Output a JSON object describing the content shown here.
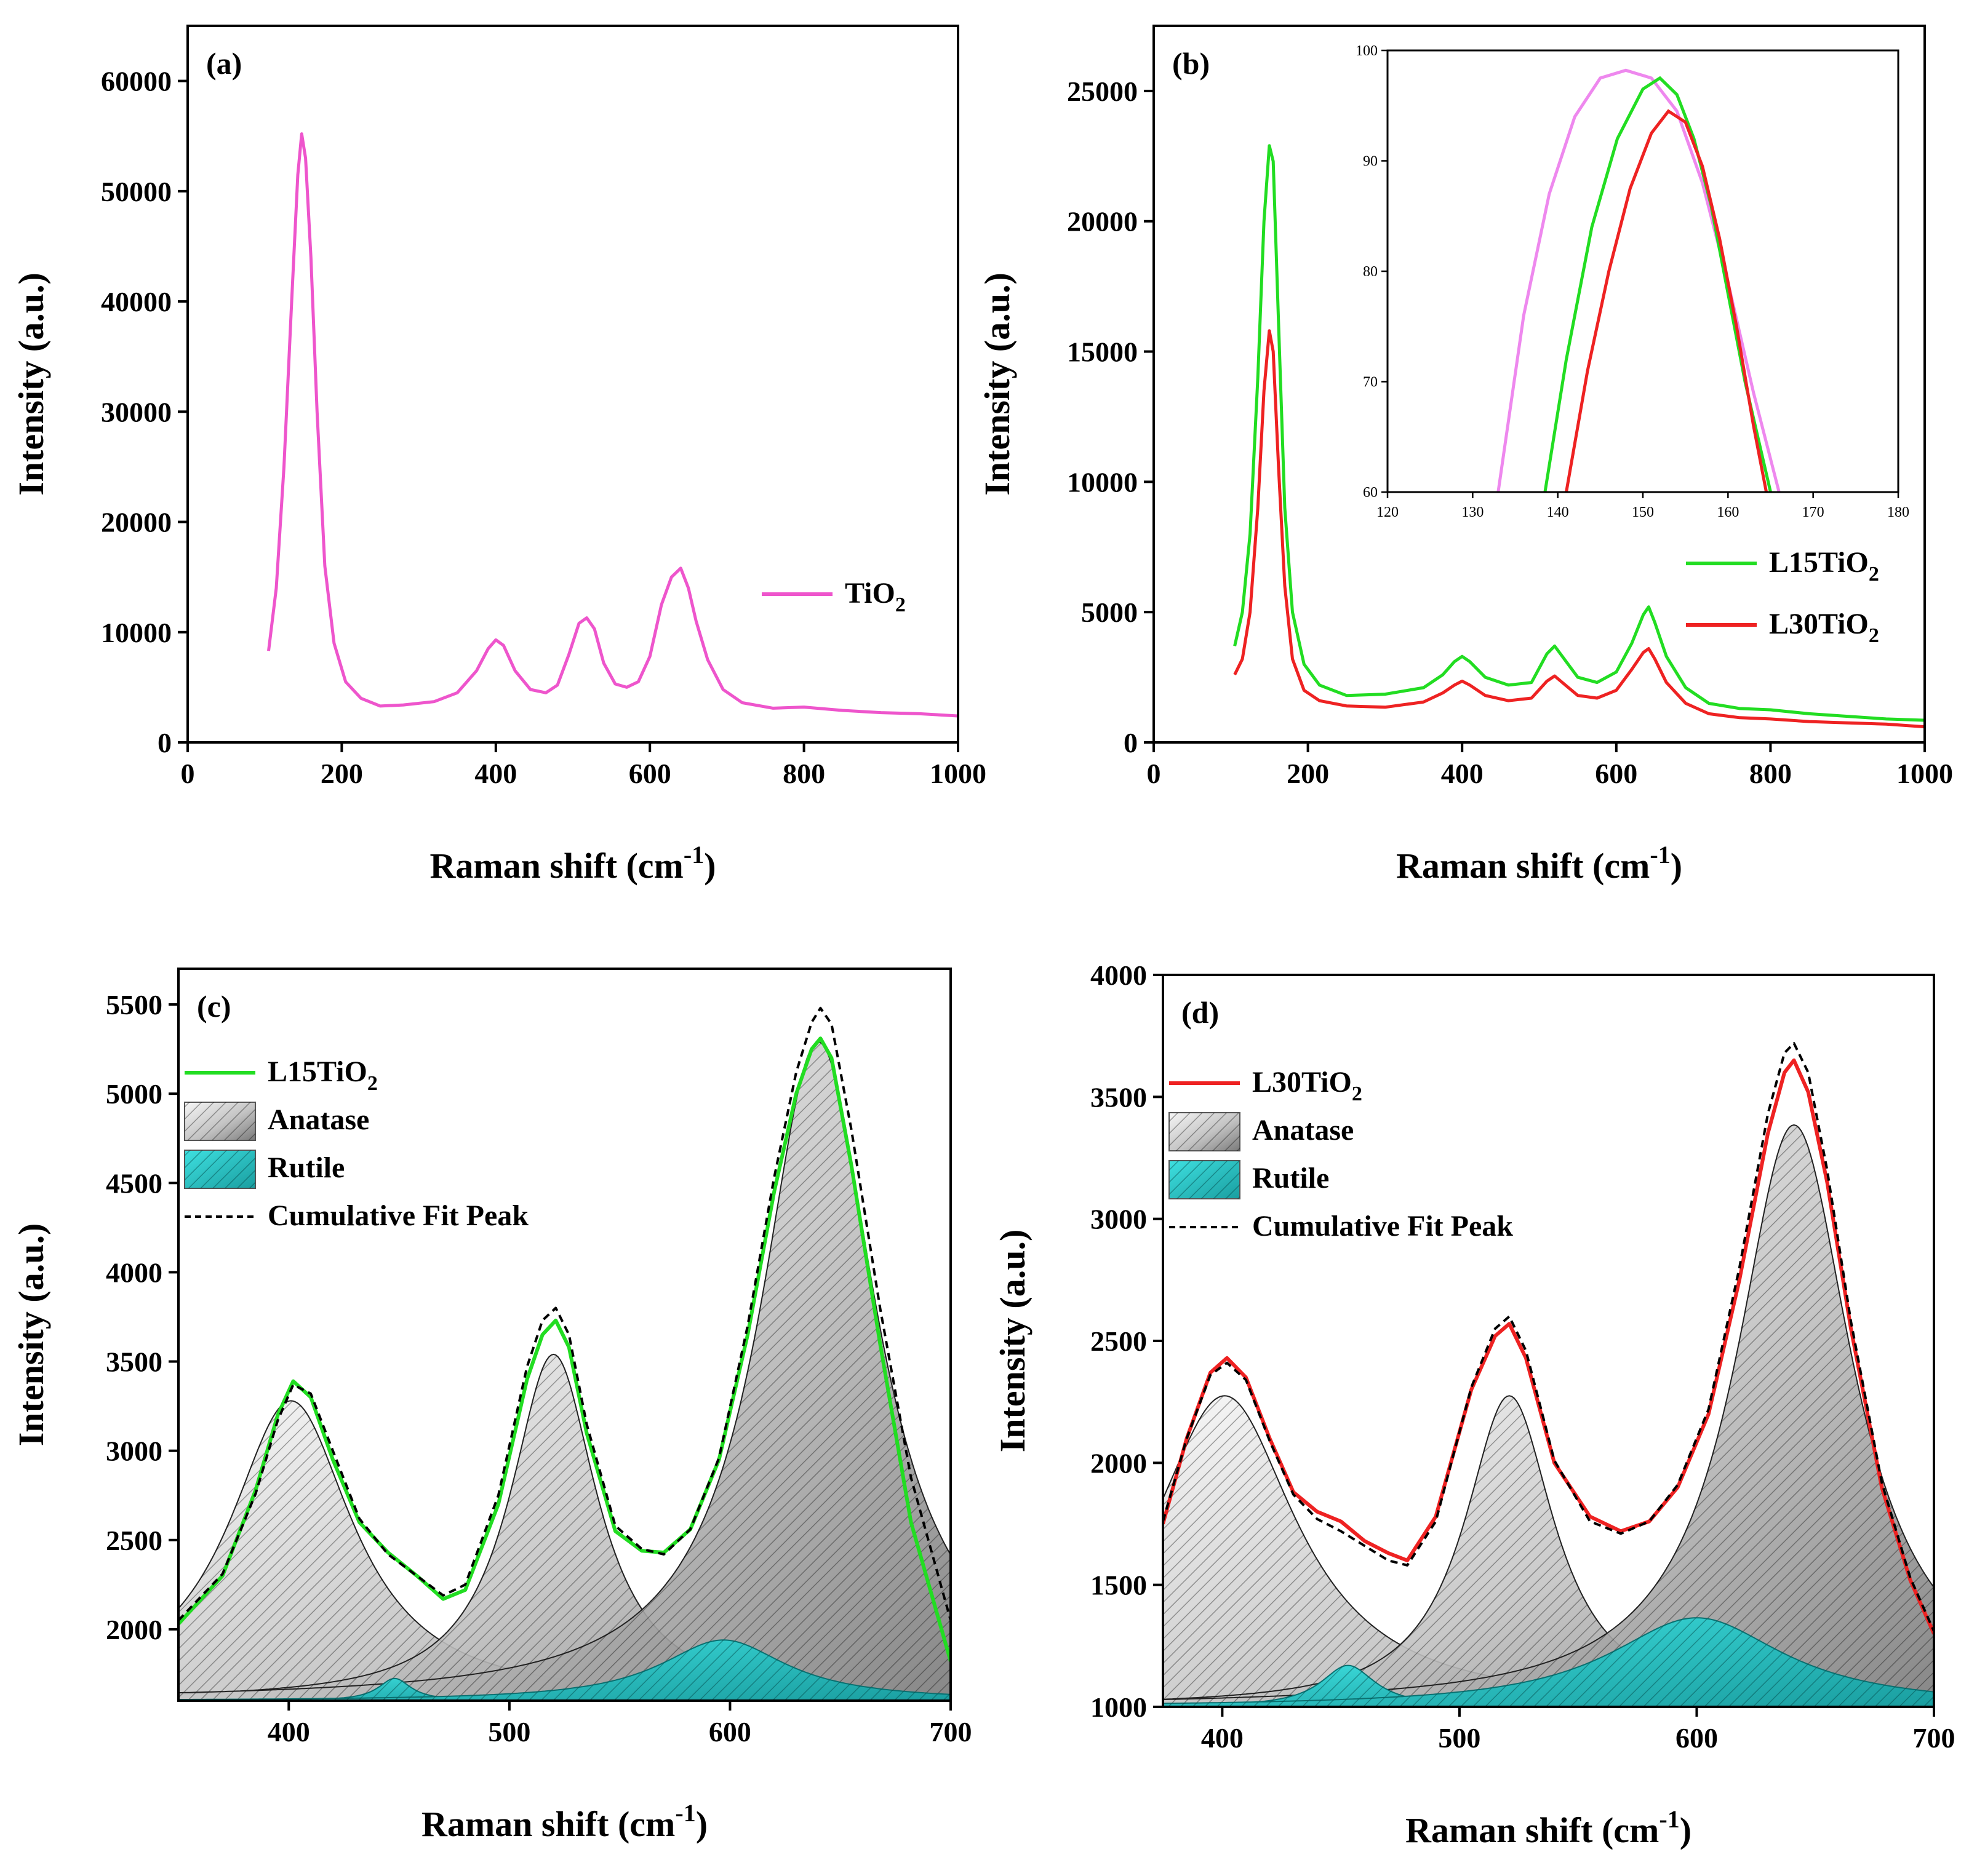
{
  "colors": {
    "tio2": "#ee55cc",
    "l15": "#22dd22",
    "l30": "#ee2222",
    "inset_pink": "#ee88ee",
    "anatase": "#c8c8c8",
    "rutile": "#22c8c8",
    "fit": "#000000"
  },
  "chart_data": [
    {
      "id": "a",
      "type": "line",
      "panel_label": "(a)",
      "xlabel": "Raman shift (cm",
      "xlabel_sup": "-1",
      "xlabel_end": ")",
      "ylabel": "Intensity (a.u.)",
      "xlim": [
        0,
        1000
      ],
      "ylim": [
        0,
        65000
      ],
      "xticks": [
        0,
        200,
        400,
        600,
        800,
        1000
      ],
      "xtick_labels": [
        "0",
        "200",
        "400",
        "600",
        "800",
        "1000"
      ],
      "yticks": [
        0,
        10000,
        20000,
        30000,
        40000,
        50000,
        60000
      ],
      "ytick_labels": [
        "0",
        "10000",
        "20000",
        "30000",
        "40000",
        "50000",
        "60000"
      ],
      "legend": [
        {
          "name": "TiO",
          "sub": "2",
          "color_key": "tio2"
        }
      ],
      "series": [
        {
          "name": "TiO2",
          "color_key": "tio2",
          "x": [
            105,
            115,
            125,
            135,
            143,
            148,
            153,
            160,
            168,
            178,
            190,
            205,
            225,
            250,
            280,
            320,
            350,
            375,
            390,
            400,
            410,
            425,
            445,
            465,
            480,
            495,
            508,
            518,
            528,
            540,
            555,
            570,
            585,
            600,
            615,
            628,
            640,
            650,
            660,
            675,
            695,
            720,
            760,
            800,
            850,
            900,
            950,
            1000
          ],
          "values": [
            8300,
            14000,
            25000,
            40000,
            51500,
            55200,
            53000,
            44000,
            30000,
            16000,
            9000,
            5500,
            4000,
            3300,
            3400,
            3700,
            4500,
            6500,
            8500,
            9300,
            8800,
            6500,
            4800,
            4500,
            5200,
            8000,
            10800,
            11300,
            10300,
            7200,
            5300,
            5000,
            5500,
            7800,
            12500,
            15000,
            15800,
            14000,
            11000,
            7500,
            4800,
            3600,
            3100,
            3200,
            2900,
            2700,
            2600,
            2400
          ]
        }
      ]
    },
    {
      "id": "b",
      "type": "line",
      "panel_label": "(b)",
      "xlabel": "Raman shift (cm",
      "xlabel_sup": "-1",
      "xlabel_end": ")",
      "ylabel": "Intensity (a.u.)",
      "xlim": [
        0,
        1000
      ],
      "ylim": [
        0,
        27500
      ],
      "xticks": [
        0,
        200,
        400,
        600,
        800,
        1000
      ],
      "xtick_labels": [
        "0",
        "200",
        "400",
        "600",
        "800",
        "1000"
      ],
      "yticks": [
        0,
        5000,
        10000,
        15000,
        20000,
        25000
      ],
      "ytick_labels": [
        "0",
        "5000",
        "10000",
        "15000",
        "20000",
        "25000"
      ],
      "legend": [
        {
          "name": "L15TiO",
          "sub": "2",
          "color_key": "l15"
        },
        {
          "name": "L30TiO",
          "sub": "2",
          "color_key": "l30"
        }
      ],
      "series": [
        {
          "name": "L15TiO2",
          "color_key": "l15",
          "x": [
            105,
            115,
            125,
            135,
            143,
            150,
            155,
            162,
            170,
            180,
            195,
            215,
            250,
            300,
            350,
            375,
            390,
            400,
            410,
            430,
            460,
            490,
            510,
            520,
            530,
            550,
            575,
            600,
            620,
            635,
            642,
            650,
            665,
            690,
            720,
            760,
            800,
            850,
            900,
            950,
            1000
          ],
          "values": [
            3700,
            5000,
            8000,
            14000,
            20000,
            22900,
            22300,
            16000,
            9000,
            5000,
            3000,
            2200,
            1800,
            1850,
            2100,
            2600,
            3100,
            3300,
            3100,
            2500,
            2200,
            2300,
            3400,
            3700,
            3300,
            2500,
            2300,
            2700,
            3800,
            4900,
            5200,
            4600,
            3300,
            2100,
            1500,
            1300,
            1250,
            1100,
            1000,
            900,
            850
          ]
        },
        {
          "name": "L30TiO2",
          "color_key": "l30",
          "x": [
            105,
            115,
            125,
            135,
            143,
            150,
            155,
            162,
            170,
            180,
            195,
            215,
            250,
            300,
            350,
            375,
            390,
            400,
            410,
            430,
            460,
            490,
            510,
            520,
            530,
            550,
            575,
            600,
            620,
            635,
            642,
            650,
            665,
            690,
            720,
            760,
            800,
            850,
            900,
            950,
            1000
          ],
          "values": [
            2600,
            3200,
            5000,
            9000,
            13500,
            15800,
            15000,
            10500,
            6000,
            3200,
            2000,
            1600,
            1400,
            1350,
            1550,
            1900,
            2200,
            2350,
            2200,
            1800,
            1600,
            1700,
            2350,
            2550,
            2300,
            1800,
            1700,
            2000,
            2800,
            3450,
            3600,
            3200,
            2300,
            1500,
            1100,
            950,
            900,
            800,
            750,
            700,
            600
          ]
        }
      ],
      "inset": {
        "type": "line",
        "xlim": [
          120,
          180
        ],
        "ylim": [
          60,
          100
        ],
        "xticks": [
          120,
          130,
          140,
          150,
          160,
          170,
          180
        ],
        "xtick_labels": [
          "120",
          "130",
          "140",
          "150",
          "160",
          "170",
          "180"
        ],
        "yticks": [
          60,
          70,
          80,
          90,
          100
        ],
        "ytick_labels": [
          "60",
          "70",
          "80",
          "90",
          "100"
        ],
        "series": [
          {
            "name": "TiO2",
            "color_key": "inset_pink",
            "x": [
              133,
              136,
              139,
              142,
              145,
              148,
              151,
              154,
              157,
              160,
              163,
              166
            ],
            "values": [
              60,
              76,
              87,
              94,
              97.5,
              98.2,
              97.5,
              94.5,
              88,
              79,
              69,
              60
            ]
          },
          {
            "name": "L15TiO2",
            "color_key": "l15",
            "x": [
              138.5,
              141,
              144,
              147,
              150,
              152,
              154,
              156,
              158,
              160,
              162,
              165
            ],
            "values": [
              60,
              72,
              84,
              92,
              96.5,
              97.5,
              96,
              92,
              86,
              78,
              70,
              60
            ]
          },
          {
            "name": "L30TiO2",
            "color_key": "l30",
            "x": [
              141,
              143.5,
              146,
              148.5,
              151,
              153,
              155,
              157,
              159,
              161,
              163,
              164.5
            ],
            "values": [
              60,
              71,
              80,
              87.5,
              92.5,
              94.5,
              93.5,
              89.5,
              83,
              75,
              66,
              60
            ]
          }
        ]
      }
    },
    {
      "id": "c",
      "type": "area",
      "panel_label": "(c)",
      "xlabel": "Raman shift (cm",
      "xlabel_sup": "-1",
      "xlabel_end": ")",
      "ylabel": "Intensity (a.u.)",
      "xlim": [
        350,
        700
      ],
      "ylim": [
        1600,
        5700
      ],
      "xticks": [
        400,
        500,
        600,
        700
      ],
      "xtick_labels": [
        "400",
        "500",
        "600",
        "700"
      ],
      "yticks": [
        2000,
        2500,
        3000,
        3500,
        4000,
        4500,
        5000,
        5500
      ],
      "ytick_labels": [
        "2000",
        "2500",
        "3000",
        "3500",
        "4000",
        "4500",
        "5000",
        "5500"
      ],
      "legend": [
        {
          "name": "L15TiO",
          "sub": "2",
          "kind": "line",
          "color_key": "l15"
        },
        {
          "name": "Anatase",
          "kind": "box",
          "color_key": "anatase"
        },
        {
          "name": "Rutile",
          "kind": "box",
          "color_key": "rutile"
        },
        {
          "name": "Cumulative Fit Peak",
          "kind": "dash",
          "color_key": "fit"
        }
      ],
      "baseline": 1600,
      "anatase_peaks": [
        {
          "center": 401,
          "amplitude": 1680,
          "fwhm": 68
        },
        {
          "center": 520,
          "amplitude": 1940,
          "fwhm": 48
        },
        {
          "center": 640,
          "amplitude": 3690,
          "fwhm": 64
        }
      ],
      "rutile_peaks": [
        {
          "center": 448,
          "amplitude": 125,
          "fwhm": 18
        },
        {
          "center": 597,
          "amplitude": 340,
          "fwhm": 70
        }
      ],
      "series": [
        {
          "name": "L15TiO2",
          "color_key": "l15",
          "x": [
            350,
            370,
            385,
            395,
            402,
            410,
            420,
            432,
            445,
            458,
            470,
            480,
            495,
            508,
            515,
            521,
            527,
            535,
            548,
            560,
            570,
            582,
            595,
            608,
            620,
            630,
            637,
            641,
            646,
            655,
            668,
            682,
            700
          ],
          "values": [
            2030,
            2300,
            2780,
            3200,
            3390,
            3300,
            2950,
            2600,
            2430,
            2300,
            2170,
            2220,
            2700,
            3400,
            3650,
            3730,
            3580,
            3100,
            2550,
            2440,
            2430,
            2560,
            2950,
            3650,
            4450,
            5000,
            5250,
            5310,
            5200,
            4600,
            3600,
            2600,
            1820
          ]
        },
        {
          "name": "Cumulative Fit Peak",
          "color_key": "fit",
          "dashed": true,
          "x": [
            350,
            370,
            385,
            395,
            402,
            410,
            420,
            432,
            445,
            458,
            470,
            480,
            495,
            508,
            515,
            521,
            527,
            535,
            548,
            560,
            570,
            582,
            595,
            608,
            620,
            630,
            637,
            641,
            646,
            655,
            668,
            682,
            700
          ],
          "values": [
            2050,
            2310,
            2760,
            3170,
            3370,
            3320,
            3000,
            2620,
            2420,
            2300,
            2190,
            2250,
            2750,
            3470,
            3730,
            3800,
            3650,
            3150,
            2580,
            2450,
            2420,
            2560,
            2960,
            3700,
            4530,
            5120,
            5400,
            5480,
            5390,
            4800,
            3800,
            2850,
            2050
          ]
        }
      ]
    },
    {
      "id": "d",
      "type": "area",
      "panel_label": "(d)",
      "xlabel": "Raman shift (cm",
      "xlabel_sup": "-1",
      "xlabel_end": ")",
      "ylabel": "Intensity (a.u.)",
      "xlim": [
        375,
        700
      ],
      "ylim": [
        1000,
        4000
      ],
      "xticks": [
        400,
        500,
        600,
        700
      ],
      "xtick_labels": [
        "400",
        "500",
        "600",
        "700"
      ],
      "yticks": [
        1000,
        1500,
        2000,
        2500,
        3000,
        3500,
        4000
      ],
      "ytick_labels": [
        "1000",
        "1500",
        "2000",
        "2500",
        "3000",
        "3500",
        "4000"
      ],
      "legend": [
        {
          "name": "L30TiO",
          "sub": "2",
          "kind": "line",
          "color_key": "l30"
        },
        {
          "name": "Anatase",
          "kind": "box",
          "color_key": "anatase"
        },
        {
          "name": "Rutile",
          "kind": "box",
          "color_key": "rutile"
        },
        {
          "name": "Cumulative Fit Peak",
          "kind": "dash",
          "color_key": "fit"
        }
      ],
      "baseline": 1000,
      "anatase_peaks": [
        {
          "center": 401,
          "amplitude": 1275,
          "fwhm": 74
        },
        {
          "center": 521,
          "amplitude": 1275,
          "fwhm": 46
        },
        {
          "center": 641,
          "amplitude": 2385,
          "fwhm": 60
        }
      ],
      "rutile_peaks": [
        {
          "center": 453,
          "amplitude": 170,
          "fwhm": 28
        },
        {
          "center": 600,
          "amplitude": 365,
          "fwhm": 90
        }
      ],
      "series": [
        {
          "name": "L30TiO2",
          "color_key": "l30",
          "x": [
            375,
            385,
            395,
            402,
            410,
            420,
            430,
            440,
            450,
            460,
            470,
            478,
            490,
            505,
            515,
            521,
            528,
            540,
            555,
            568,
            580,
            592,
            605,
            618,
            630,
            637,
            641,
            647,
            655,
            665,
            678,
            690,
            700
          ],
          "values": [
            1750,
            2100,
            2370,
            2430,
            2350,
            2100,
            1880,
            1800,
            1760,
            1680,
            1630,
            1600,
            1780,
            2300,
            2520,
            2570,
            2430,
            2000,
            1780,
            1720,
            1760,
            1900,
            2200,
            2750,
            3350,
            3600,
            3650,
            3520,
            3150,
            2550,
            1900,
            1520,
            1300
          ]
        },
        {
          "name": "Cumulative Fit Peak",
          "color_key": "fit",
          "dashed": true,
          "x": [
            375,
            385,
            395,
            402,
            410,
            420,
            430,
            440,
            450,
            460,
            470,
            478,
            490,
            505,
            515,
            521,
            528,
            540,
            555,
            568,
            580,
            592,
            605,
            618,
            630,
            637,
            641,
            647,
            655,
            665,
            678,
            690,
            700
          ],
          "values": [
            1760,
            2100,
            2360,
            2410,
            2340,
            2090,
            1870,
            1770,
            1720,
            1660,
            1600,
            1580,
            1760,
            2310,
            2550,
            2600,
            2460,
            2010,
            1760,
            1710,
            1760,
            1910,
            2220,
            2800,
            3430,
            3680,
            3720,
            3600,
            3200,
            2580,
            1920,
            1530,
            1310
          ]
        }
      ]
    }
  ]
}
